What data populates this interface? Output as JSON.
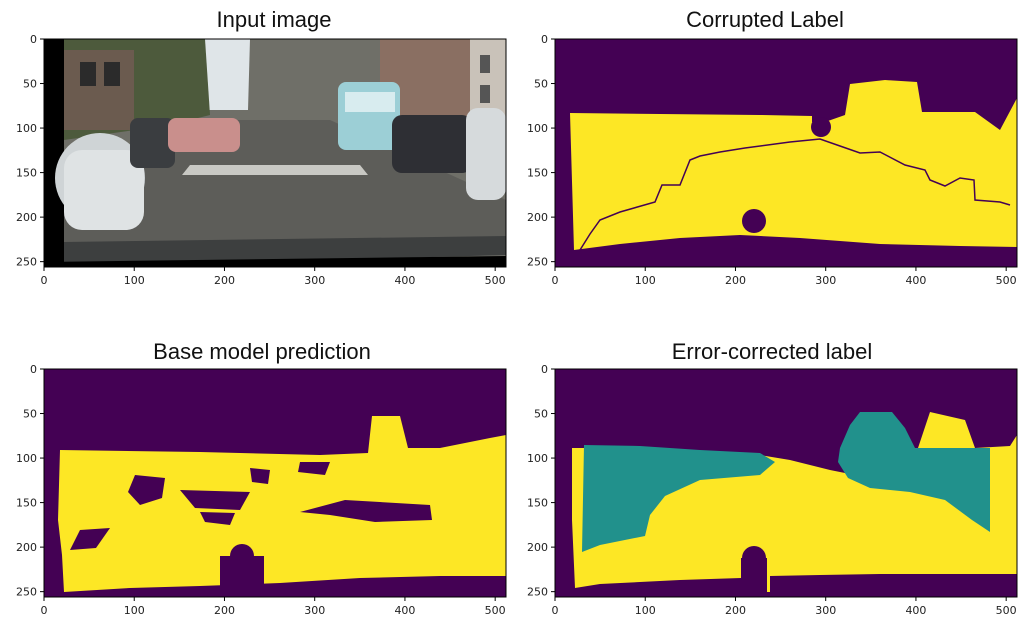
{
  "colors": {
    "purple": "#440154",
    "yellow": "#fde725",
    "teal": "#21918c",
    "frame": "#000000"
  },
  "panels": [
    {
      "title": "Input image",
      "image": "street scene photo",
      "x_ticks": [
        "0",
        "100",
        "200",
        "300",
        "400",
        "500"
      ],
      "y_ticks": [
        "0",
        "50",
        "100",
        "150",
        "200",
        "250"
      ]
    },
    {
      "title": "Corrupted Label",
      "image": "binary label map",
      "x_ticks": [
        "0",
        "100",
        "200",
        "300",
        "400",
        "500"
      ],
      "y_ticks": [
        "0",
        "50",
        "100",
        "150",
        "200",
        "250"
      ]
    },
    {
      "title": "Base model prediction",
      "image": "binary prediction map",
      "x_ticks": [
        "0",
        "100",
        "200",
        "300",
        "400",
        "500"
      ],
      "y_ticks": [
        "0",
        "50",
        "100",
        "150",
        "200",
        "250"
      ]
    },
    {
      "title": "Error-corrected label",
      "image": "three-class label map",
      "x_ticks": [
        "0",
        "100",
        "200",
        "300",
        "400",
        "500"
      ],
      "y_ticks": [
        "0",
        "50",
        "100",
        "150",
        "200",
        "250"
      ]
    }
  ]
}
